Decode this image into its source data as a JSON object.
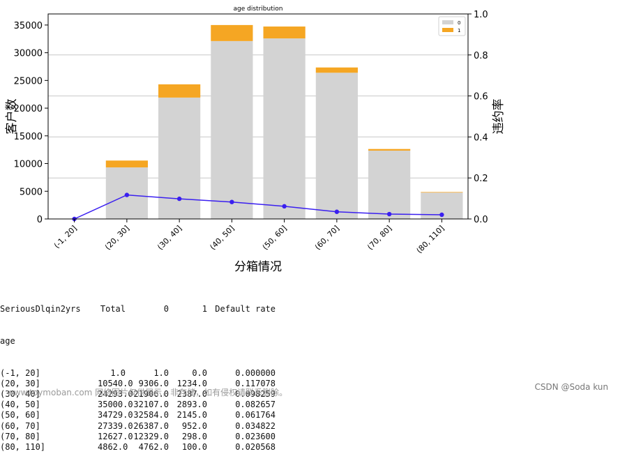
{
  "chart_data": {
    "type": "bar",
    "title": "age distribution",
    "xlabel": "分箱情况",
    "ylabel": "客户数",
    "ylabel_right": "违约率",
    "categories": [
      "(-1, 20]",
      "(20, 30]",
      "(30, 40]",
      "(40, 50]",
      "(50, 60]",
      "(60, 70]",
      "(70, 80]",
      "(80, 110]"
    ],
    "series": [
      {
        "name": "0",
        "kind": "bar",
        "color": "#d3d3d3",
        "values": [
          1,
          9306,
          21906,
          32107,
          32584,
          26387,
          12329,
          4762
        ]
      },
      {
        "name": "1",
        "kind": "bar",
        "color": "#f5a623",
        "values": [
          0,
          1234,
          2387,
          2893,
          2145,
          952,
          298,
          100
        ]
      },
      {
        "name": "Default rate",
        "kind": "line",
        "axis": "right",
        "color": "#3a1ff0",
        "values": [
          0.0,
          0.117078,
          0.098259,
          0.082657,
          0.061764,
          0.034822,
          0.0236,
          0.020568
        ]
      }
    ],
    "ylim": [
      0,
      37000
    ],
    "yticks": [
      0,
      5000,
      10000,
      15000,
      20000,
      25000,
      30000,
      35000
    ],
    "ylim_right": [
      0,
      1.0
    ],
    "yticks_right": [
      0.0,
      0.2,
      0.4,
      0.6,
      0.8,
      1.0
    ],
    "ytick_labels_right": [
      "0.0",
      "0.2",
      "0.4",
      "0.6",
      "0.8",
      "1.0"
    ],
    "legend": [
      "0",
      "1"
    ],
    "legend_position": "top-right",
    "grid": "horizontal-right-axis"
  },
  "table": {
    "header": [
      "SeriousDlqin2yrs",
      "Total",
      "0",
      "1",
      "Default rate"
    ],
    "index_name": "age",
    "rows": [
      [
        "(-1, 20]",
        "1.0",
        "1.0",
        "0.0",
        "0.000000"
      ],
      [
        "(20, 30]",
        "10540.0",
        "9306.0",
        "1234.0",
        "0.117078"
      ],
      [
        "(30, 40]",
        "24293.0",
        "21906.0",
        "2387.0",
        "0.098259"
      ],
      [
        "(40, 50]",
        "35000.0",
        "32107.0",
        "2893.0",
        "0.082657"
      ],
      [
        "(50, 60]",
        "34729.0",
        "32584.0",
        "2145.0",
        "0.061764"
      ],
      [
        "(60, 70]",
        "27339.0",
        "26387.0",
        "952.0",
        "0.034822"
      ],
      [
        "(70, 80]",
        "12627.0",
        "12329.0",
        "298.0",
        "0.023600"
      ],
      [
        "(80, 110]",
        "4862.0",
        "4762.0",
        "100.0",
        "0.020568"
      ]
    ]
  },
  "watermark": "www.toymoban.com 网络图片仅供展示，非存储，如有侵权请联系删除。",
  "credit": "CSDN @Soda kun"
}
